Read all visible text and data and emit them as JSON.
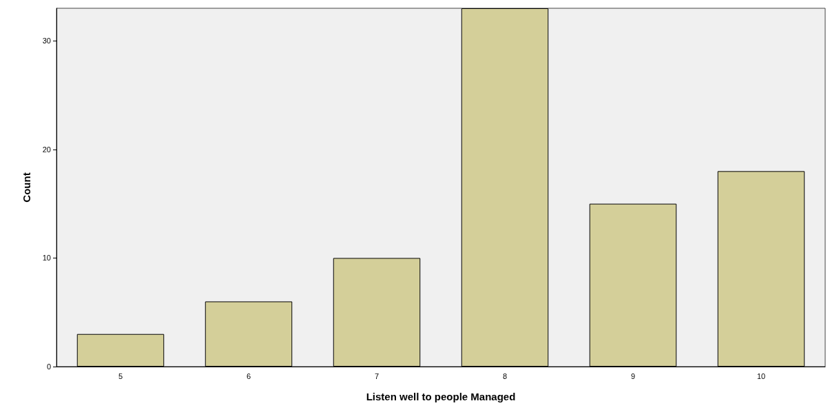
{
  "chart_data": {
    "type": "bar",
    "xlabel": "Listen well to people Managed",
    "ylabel": "Count",
    "categories": [
      "5",
      "6",
      "7",
      "8",
      "9",
      "10"
    ],
    "values": [
      3,
      6,
      10,
      33,
      15,
      18
    ],
    "color": "#d4cf99",
    "ylim": [
      0,
      33
    ],
    "yticks": [
      0,
      10,
      20,
      30
    ],
    "grid": false
  }
}
